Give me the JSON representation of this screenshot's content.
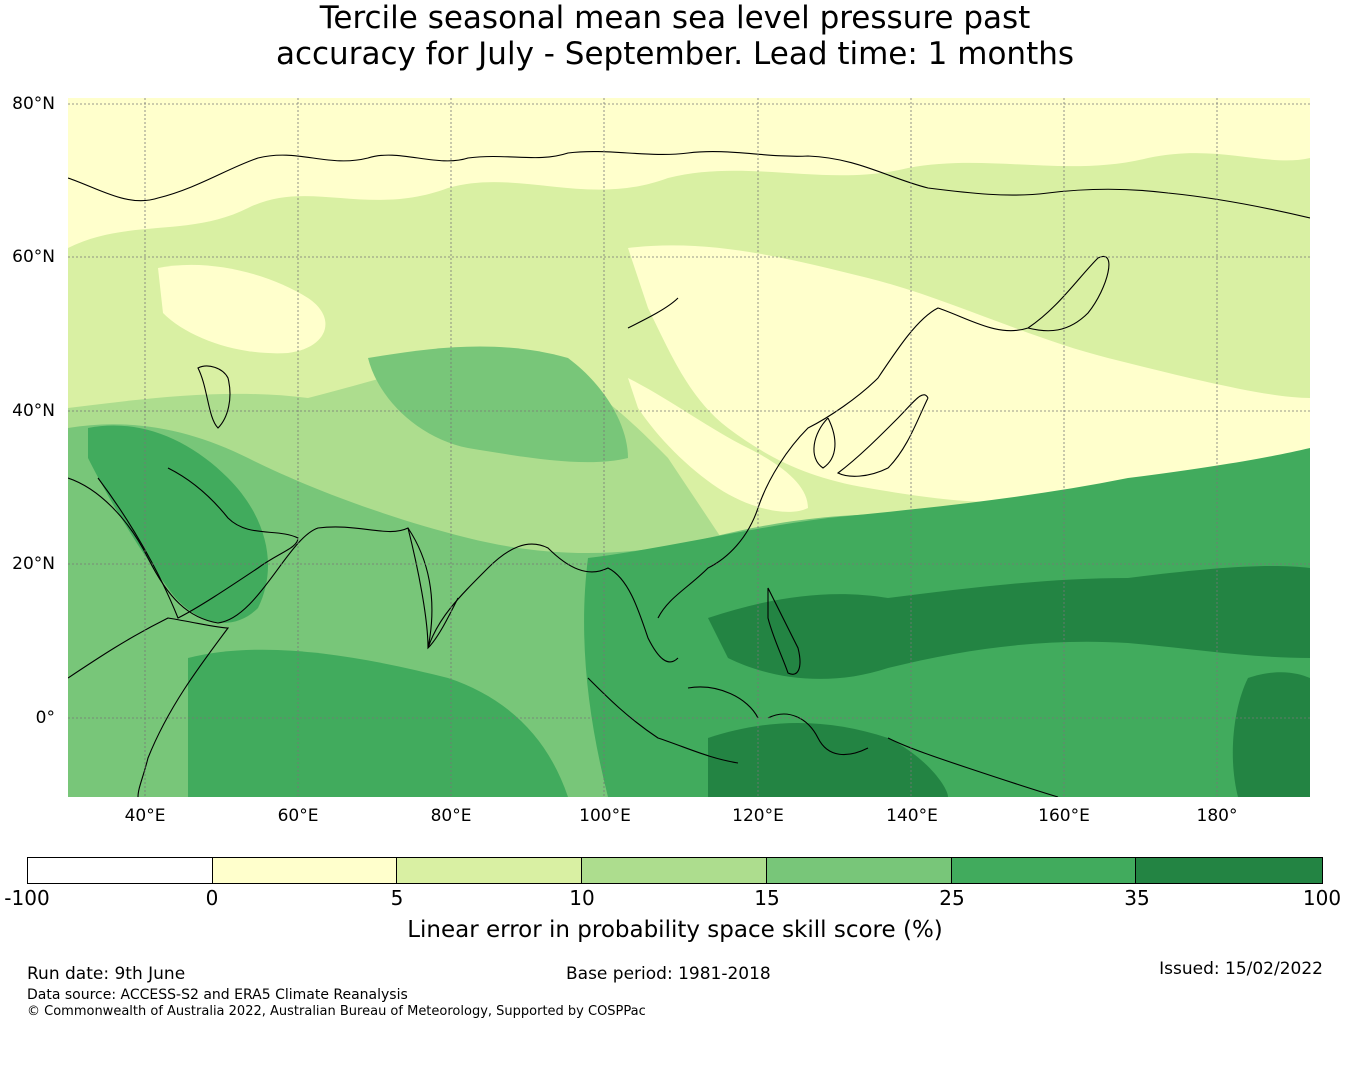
{
  "title": {
    "line1": "Tercile seasonal mean sea level pressure past",
    "line2": "accuracy for July - September. Lead time: 1 months"
  },
  "map": {
    "lat_labels": [
      "80°N",
      "60°N",
      "40°N",
      "20°N",
      "0°"
    ],
    "lon_labels": [
      "40°E",
      "60°E",
      "80°E",
      "100°E",
      "120°E",
      "140°E",
      "160°E",
      "180°"
    ],
    "lon_range": [
      30,
      192
    ],
    "lat_range": [
      -10,
      80
    ],
    "gridline_color": "#777777"
  },
  "colorbar": {
    "label": "Linear error in probability space skill score (%)",
    "ticks": [
      "-100",
      "0",
      "5",
      "10",
      "15",
      "25",
      "35",
      "100"
    ],
    "colors": [
      "#ffffff",
      "#ffffcc",
      "#d9f0a3",
      "#addd8e",
      "#78c679",
      "#41ab5d",
      "#238443"
    ]
  },
  "footer": {
    "run_date": "Run date: 9th June",
    "base_period": "Base period: 1981-2018",
    "issued": "Issued: 15/02/2022",
    "data_source": "Data source: ACCESS-S2 and ERA5 Climate Reanalysis",
    "copyright": "© Commonwealth of Australia 2022, Australian Bureau of Meteorology, Supported by COSPPac"
  }
}
